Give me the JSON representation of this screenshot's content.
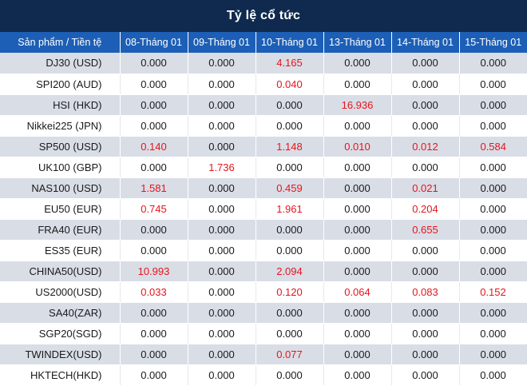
{
  "title": "Tỷ lệ cổ tức",
  "header": {
    "first": "Sản phẩm / Tiền tệ",
    "dates": [
      "08-Tháng 01",
      "09-Tháng 01",
      "10-Tháng 01",
      "13-Tháng 01",
      "14-Tháng 01",
      "15-Tháng 01"
    ]
  },
  "colors": {
    "title_bg": "#0f2a4e",
    "header_bg": "#1d5fb6",
    "stripe": "#d9dde6",
    "positive": "#e8141c"
  },
  "rows": [
    {
      "product": "DJ30 (USD)",
      "values": [
        "0.000",
        "0.000",
        "4.165",
        "0.000",
        "0.000",
        "0.000"
      ]
    },
    {
      "product": "SPI200 (AUD)",
      "values": [
        "0.000",
        "0.000",
        "0.040",
        "0.000",
        "0.000",
        "0.000"
      ]
    },
    {
      "product": "HSI (HKD)",
      "values": [
        "0.000",
        "0.000",
        "0.000",
        "16.936",
        "0.000",
        "0.000"
      ]
    },
    {
      "product": "Nikkei225 (JPN)",
      "values": [
        "0.000",
        "0.000",
        "0.000",
        "0.000",
        "0.000",
        "0.000"
      ]
    },
    {
      "product": "SP500 (USD)",
      "values": [
        "0.140",
        "0.000",
        "1.148",
        "0.010",
        "0.012",
        "0.584"
      ]
    },
    {
      "product": "UK100 (GBP)",
      "values": [
        "0.000",
        "1.736",
        "0.000",
        "0.000",
        "0.000",
        "0.000"
      ]
    },
    {
      "product": "NAS100 (USD)",
      "values": [
        "1.581",
        "0.000",
        "0.459",
        "0.000",
        "0.021",
        "0.000"
      ]
    },
    {
      "product": "EU50 (EUR)",
      "values": [
        "0.745",
        "0.000",
        "1.961",
        "0.000",
        "0.204",
        "0.000"
      ]
    },
    {
      "product": "FRA40 (EUR)",
      "values": [
        "0.000",
        "0.000",
        "0.000",
        "0.000",
        "0.655",
        "0.000"
      ]
    },
    {
      "product": "ES35 (EUR)",
      "values": [
        "0.000",
        "0.000",
        "0.000",
        "0.000",
        "0.000",
        "0.000"
      ]
    },
    {
      "product": "CHINA50(USD)",
      "values": [
        "10.993",
        "0.000",
        "2.094",
        "0.000",
        "0.000",
        "0.000"
      ]
    },
    {
      "product": "US2000(USD)",
      "values": [
        "0.033",
        "0.000",
        "0.120",
        "0.064",
        "0.083",
        "0.152"
      ]
    },
    {
      "product": "SA40(ZAR)",
      "values": [
        "0.000",
        "0.000",
        "0.000",
        "0.000",
        "0.000",
        "0.000"
      ]
    },
    {
      "product": "SGP20(SGD)",
      "values": [
        "0.000",
        "0.000",
        "0.000",
        "0.000",
        "0.000",
        "0.000"
      ]
    },
    {
      "product": "TWINDEX(USD)",
      "values": [
        "0.000",
        "0.000",
        "0.077",
        "0.000",
        "0.000",
        "0.000"
      ]
    },
    {
      "product": "HKTECH(HKD)",
      "values": [
        "0.000",
        "0.000",
        "0.000",
        "0.000",
        "0.000",
        "0.000"
      ]
    }
  ]
}
